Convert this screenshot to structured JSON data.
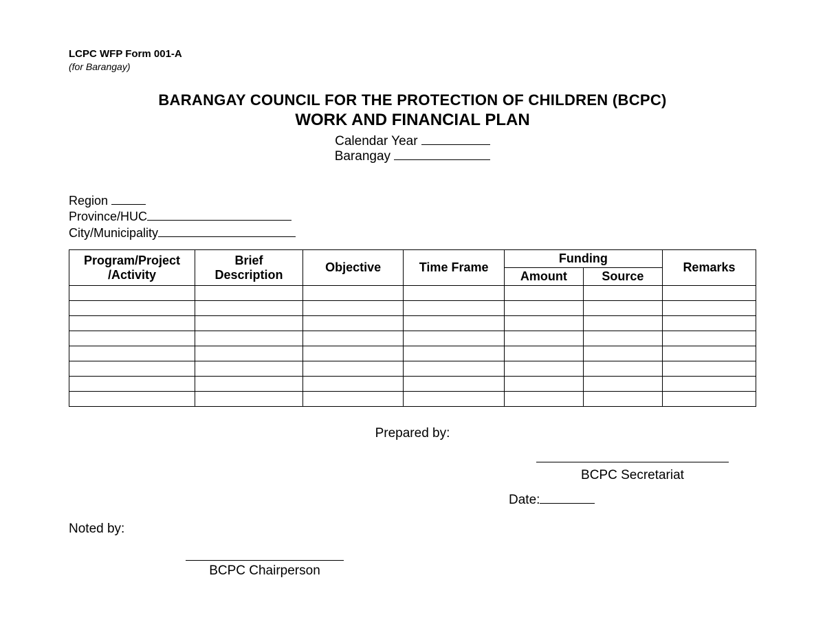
{
  "header": {
    "form_code": "LCPC WFP Form 001-A",
    "form_for": "(for Barangay)",
    "title_line1": "BARANGAY COUNCIL FOR THE PROTECTION OF CHILDREN (BCPC)",
    "title_line2": "WORK AND FINANCIAL PLAN",
    "calendar_year_label": "Calendar Year",
    "barangay_label": "Barangay"
  },
  "location": {
    "region_label": "Region",
    "province_label": "Province/HUC",
    "city_label": "City/Municipality"
  },
  "table": {
    "columns": {
      "program": "Program/Project /Activity",
      "brief": "Brief Description",
      "objective": "Objective",
      "timeframe": "Time Frame",
      "funding": "Funding",
      "amount": "Amount",
      "source": "Source",
      "remarks": "Remarks"
    },
    "row_count": 8
  },
  "signatures": {
    "prepared_by": "Prepared by:",
    "secretariat": "BCPC Secretariat",
    "date_label": "Date:",
    "noted_by": "Noted by:",
    "chairperson": "BCPC Chairperson"
  }
}
